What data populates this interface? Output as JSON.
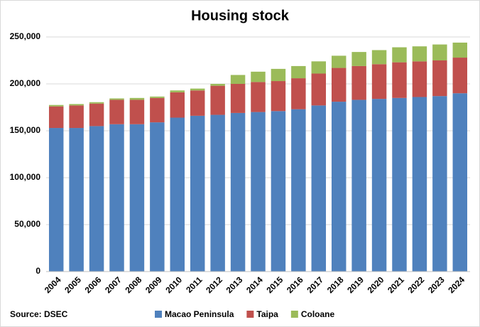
{
  "chart_data": {
    "type": "stacked_bar",
    "title": "Housing stock",
    "source": "Source: DSEC",
    "categories": [
      "2004",
      "2005",
      "2006",
      "2007",
      "2008",
      "2009",
      "2010",
      "2011",
      "2012",
      "2013",
      "2014",
      "2015",
      "2016",
      "2017",
      "2018",
      "2019",
      "2020",
      "2021",
      "2022",
      "2023",
      "2024"
    ],
    "series": [
      {
        "name": "Macao Peninsula",
        "color": "#4f81bd",
        "values": [
          153000,
          153000,
          155000,
          157000,
          157000,
          159000,
          164000,
          166000,
          167000,
          169000,
          170000,
          171000,
          173000,
          177000,
          181000,
          183000,
          184000,
          185000,
          186000,
          187000,
          190000
        ]
      },
      {
        "name": "Taipa",
        "color": "#c0504d",
        "values": [
          23000,
          24000,
          24000,
          26000,
          26000,
          26000,
          27000,
          27000,
          31000,
          31000,
          32000,
          32000,
          33000,
          34000,
          36000,
          36000,
          37000,
          38000,
          38000,
          38000,
          38000
        ]
      },
      {
        "name": "Coloane",
        "color": "#9bbb59",
        "values": [
          1500,
          1500,
          1500,
          1500,
          2000,
          1500,
          2000,
          2000,
          2000,
          9500,
          11000,
          13000,
          13000,
          13000,
          13000,
          15000,
          15000,
          16000,
          16000,
          17000,
          16000
        ]
      }
    ],
    "ylim": [
      0,
      250000
    ],
    "yticks": [
      0,
      {
        "value": 50000,
        "label": "50,000"
      },
      {
        "value": 100000,
        "label": "100,000"
      },
      {
        "value": 150000,
        "label": "150,000"
      },
      {
        "value": 200000,
        "label": "200,000"
      },
      {
        "value": 250000,
        "label": "250,000"
      }
    ],
    "grid": true,
    "legend": "bottom"
  }
}
